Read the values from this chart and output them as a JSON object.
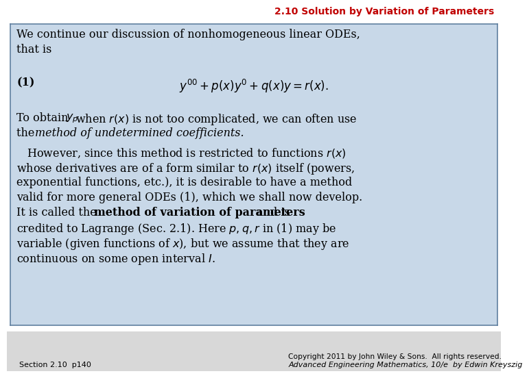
{
  "title": "2.10 Solution by Variation of Parameters",
  "title_color": "#C00000",
  "bg_color": "#FFFFFF",
  "box_bg_color": "#C8D8E8",
  "box_border_color": "#6080A0",
  "footer_bg_color": "#D8D8D8",
  "footer_left": "Section 2.10  p140",
  "footer_right_line1": "Advanced Engineering Mathematics, 10/e  by Edwin Kreyszig",
  "footer_right_line2": "Copyright 2011 by John Wiley & Sons.  All rights reserved.",
  "title_fs": 10,
  "body_fs": 11.5,
  "footer_fs": 8.0
}
